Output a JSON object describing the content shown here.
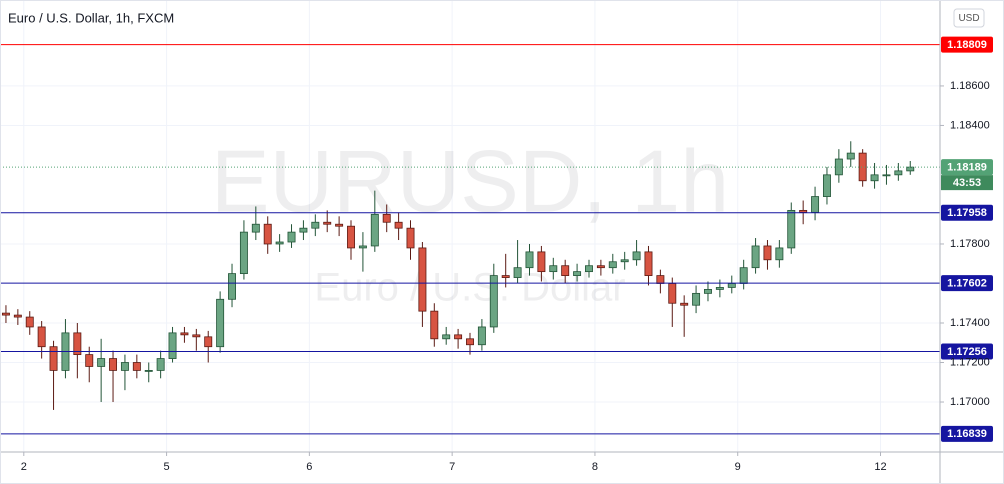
{
  "chart_data": {
    "type": "candlestick",
    "title": "Euro / U.S. Dollar, 1h, FXCM",
    "watermark": "EURUSD, 1h",
    "watermark_subtitle": "Euro / U.S. Dollar",
    "currency": "USD",
    "ylim": [
      1.16747,
      1.19035
    ],
    "yticks": [
      {
        "value": 1.17,
        "label": "1.17000"
      },
      {
        "value": 1.172,
        "label": "1.17200"
      },
      {
        "value": 1.174,
        "label": "1.17400"
      },
      {
        "value": 1.178,
        "label": "1.17800"
      },
      {
        "value": 1.184,
        "label": "1.18400"
      },
      {
        "value": 1.186,
        "label": "1.18600"
      }
    ],
    "xlim": [
      -0.5,
      78.5
    ],
    "xticks": [
      {
        "value": 1.5,
        "label": "2"
      },
      {
        "value": 13.5,
        "label": "5"
      },
      {
        "value": 25.5,
        "label": "6"
      },
      {
        "value": 37.5,
        "label": "7"
      },
      {
        "value": 49.5,
        "label": "8"
      },
      {
        "value": 61.5,
        "label": "9"
      },
      {
        "value": 73.5,
        "label": "12"
      }
    ],
    "up_color": "#6ba583",
    "down_color": "#d75442",
    "series": {
      "open": [
        1.1745,
        1.1744,
        1.1743,
        1.1738,
        1.1728,
        1.1716,
        1.1735,
        1.1724,
        1.1718,
        1.1722,
        1.1716,
        1.172,
        1.1716,
        1.1716,
        1.1722,
        1.1735,
        1.1734,
        1.1733,
        1.1728,
        1.1752,
        1.1765,
        1.1786,
        1.179,
        1.178,
        1.1781,
        1.1786,
        1.1788,
        1.1791,
        1.179,
        1.1789,
        1.1778,
        1.1779,
        1.1795,
        1.1791,
        1.1788,
        1.1778,
        1.1746,
        1.1732,
        1.1734,
        1.1732,
        1.1729,
        1.1738,
        1.1764,
        1.1763,
        1.1768,
        1.1776,
        1.1766,
        1.1769,
        1.1764,
        1.1766,
        1.1769,
        1.1768,
        1.1771,
        1.1772,
        1.1776,
        1.1764,
        1.176,
        1.175,
        1.1749,
        1.1755,
        1.1757,
        1.1758,
        1.176,
        1.1768,
        1.1779,
        1.1772,
        1.1778,
        1.1797,
        1.1796,
        1.1804,
        1.1815,
        1.1823,
        1.1826,
        1.1812,
        1.1815,
        1.1815,
        1.1817
      ],
      "high": [
        1.1749,
        1.1747,
        1.1746,
        1.1741,
        1.1731,
        1.1742,
        1.174,
        1.1728,
        1.1732,
        1.1726,
        1.1724,
        1.1724,
        1.172,
        1.1726,
        1.1738,
        1.1738,
        1.1737,
        1.1736,
        1.1756,
        1.177,
        1.1792,
        1.1799,
        1.1794,
        1.1785,
        1.179,
        1.1792,
        1.1795,
        1.1797,
        1.1794,
        1.1792,
        1.1786,
        1.1807,
        1.18,
        1.1796,
        1.1792,
        1.1781,
        1.175,
        1.1738,
        1.1737,
        1.1735,
        1.1742,
        1.177,
        1.1775,
        1.1782,
        1.178,
        1.1779,
        1.1773,
        1.1772,
        1.177,
        1.1772,
        1.1772,
        1.1775,
        1.1776,
        1.1782,
        1.1779,
        1.1767,
        1.1763,
        1.1754,
        1.1759,
        1.1761,
        1.1762,
        1.1764,
        1.1772,
        1.1783,
        1.1782,
        1.1782,
        1.1801,
        1.1802,
        1.1809,
        1.1819,
        1.1828,
        1.1832,
        1.1828,
        1.1821,
        1.182,
        1.1821,
        1.1822
      ],
      "low": [
        1.174,
        1.1739,
        1.1734,
        1.1722,
        1.1696,
        1.1712,
        1.1712,
        1.171,
        1.17,
        1.17,
        1.1706,
        1.1712,
        1.171,
        1.1712,
        1.172,
        1.173,
        1.1726,
        1.172,
        1.1725,
        1.1748,
        1.1762,
        1.1782,
        1.1775,
        1.1776,
        1.1778,
        1.1782,
        1.1784,
        1.1786,
        1.1784,
        1.1772,
        1.1766,
        1.1776,
        1.1786,
        1.1782,
        1.1772,
        1.1738,
        1.1728,
        1.1729,
        1.1727,
        1.1724,
        1.1726,
        1.1735,
        1.1758,
        1.176,
        1.1764,
        1.1761,
        1.1762,
        1.176,
        1.1761,
        1.1763,
        1.1764,
        1.1765,
        1.1767,
        1.1769,
        1.1759,
        1.1755,
        1.1738,
        1.1733,
        1.1745,
        1.1751,
        1.1753,
        1.1755,
        1.1757,
        1.1765,
        1.1767,
        1.1768,
        1.1775,
        1.179,
        1.1792,
        1.18,
        1.1811,
        1.1819,
        1.1809,
        1.1808,
        1.181,
        1.1812,
        1.1815
      ],
      "close": [
        1.1744,
        1.1743,
        1.1738,
        1.1728,
        1.1716,
        1.1735,
        1.1724,
        1.1718,
        1.1722,
        1.1716,
        1.172,
        1.1716,
        1.1716,
        1.1722,
        1.1735,
        1.1734,
        1.1733,
        1.1728,
        1.1752,
        1.1765,
        1.1786,
        1.179,
        1.178,
        1.1781,
        1.1786,
        1.1788,
        1.1791,
        1.179,
        1.1789,
        1.1778,
        1.1779,
        1.1795,
        1.1791,
        1.1788,
        1.1778,
        1.1746,
        1.1732,
        1.1734,
        1.1732,
        1.1729,
        1.1738,
        1.1764,
        1.1763,
        1.1768,
        1.1776,
        1.1766,
        1.1769,
        1.1764,
        1.1766,
        1.1769,
        1.1768,
        1.1771,
        1.1772,
        1.1776,
        1.1764,
        1.176,
        1.175,
        1.1749,
        1.1755,
        1.1757,
        1.1758,
        1.176,
        1.1768,
        1.1779,
        1.1772,
        1.1778,
        1.1797,
        1.1796,
        1.1804,
        1.1815,
        1.1823,
        1.1826,
        1.1812,
        1.1815,
        1.1815,
        1.1817,
        1.18189
      ]
    },
    "levels": [
      {
        "value": 1.18809,
        "color": "#ff0000"
      },
      {
        "value": 1.17958,
        "color": "#1515a0"
      },
      {
        "value": 1.17602,
        "color": "#1515a0"
      },
      {
        "value": 1.17256,
        "color": "#1515a0"
      },
      {
        "value": 1.16839,
        "color": "#1515a0"
      }
    ],
    "last_price": {
      "value": 1.18189,
      "color": "#53a275",
      "countdown": "43:53"
    }
  }
}
